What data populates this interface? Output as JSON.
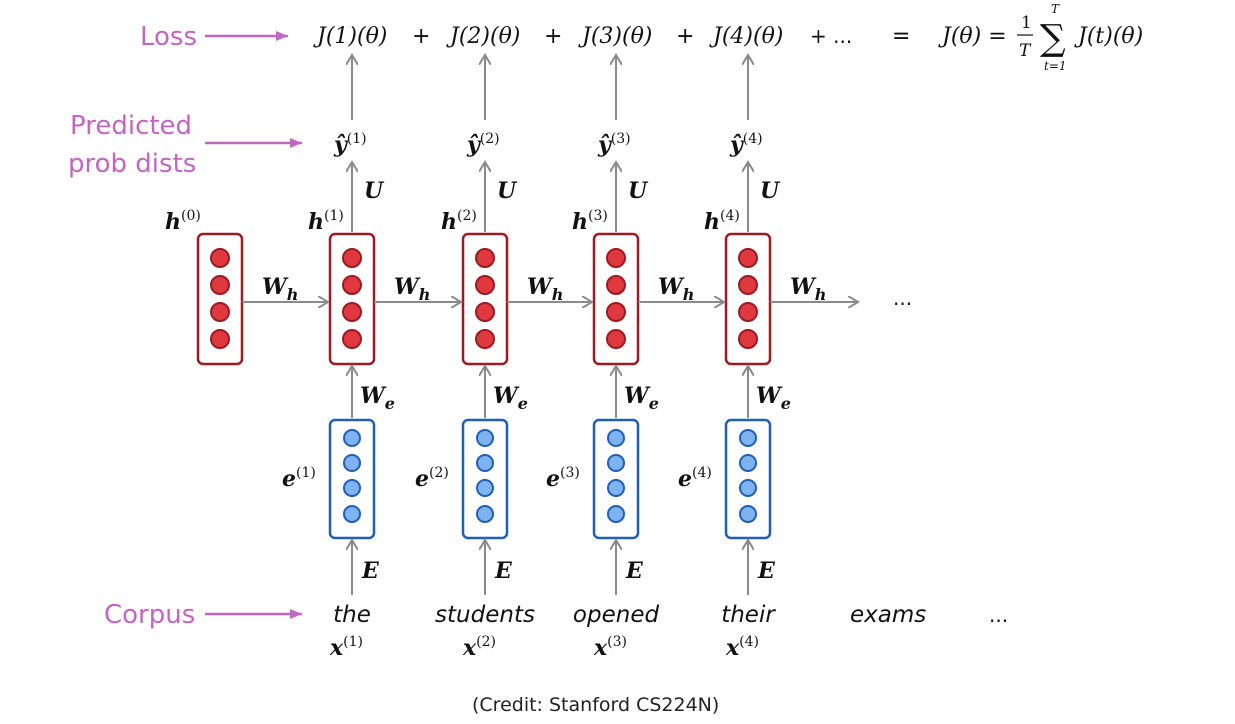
{
  "labels": {
    "loss": "Loss",
    "predicted": [
      "Predicted",
      "prob dists"
    ],
    "corpus": "Corpus"
  },
  "loss_row": {
    "terms": [
      "J(1)(θ)",
      "J(2)(θ)",
      "J(3)(θ)",
      "J(4)(θ)"
    ],
    "plus": "+",
    "trailing": "+ ...",
    "equals": "=",
    "total_lhs": "J(θ) =",
    "frac_num": "1",
    "frac_den": "T",
    "sum_sym": "∑",
    "sum_top": "T",
    "sum_bottom": "t=1",
    "sum_term": "J(t)(θ)"
  },
  "hidden0": {
    "label": "h",
    "sup": "(0)"
  },
  "steps": [
    {
      "yhat_sup": "(1)",
      "h_sup": "(1)",
      "e_sup": "(1)",
      "x_sup": "(1)",
      "word": "the"
    },
    {
      "yhat_sup": "(2)",
      "h_sup": "(2)",
      "e_sup": "(2)",
      "x_sup": "(2)",
      "word": "students"
    },
    {
      "yhat_sup": "(3)",
      "h_sup": "(3)",
      "e_sup": "(3)",
      "x_sup": "(3)",
      "word": "opened"
    },
    {
      "yhat_sup": "(4)",
      "h_sup": "(4)",
      "e_sup": "(4)",
      "x_sup": "(4)",
      "word": "their"
    }
  ],
  "weights": {
    "Wh": "W",
    "Wh_sub": "h",
    "We": "W",
    "We_sub": "e",
    "U": "U",
    "E": "E"
  },
  "symbols": {
    "yhat": "ŷ",
    "h": "h",
    "e": "e",
    "x": "x"
  },
  "extra_words": [
    "exams",
    "..."
  ],
  "hidden_ellipsis": "...",
  "credit": "(Credit: Stanford CS224N)",
  "colors": {
    "magenta": "#c266c2",
    "red_fill": "#e0383f",
    "red_stroke": "#9b1b22",
    "blue_fill": "#7fb2f0",
    "blue_stroke": "#1f5fb5",
    "arrow": "#8a8a8a"
  }
}
